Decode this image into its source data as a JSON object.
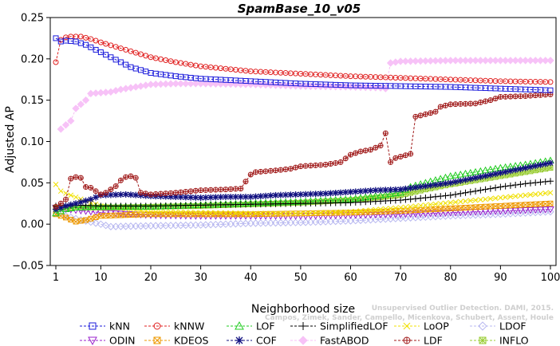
{
  "credit": {
    "line1": "Unsupervised Outlier Detection. DAMI, 2015.",
    "line2": "Campos, Zimek, Sander, Campello, Micenkova, Schubert, Assent, Houle"
  },
  "chart_data": {
    "type": "line",
    "title": "SpamBase_10_v05",
    "xlabel": "Neighborhood size",
    "ylabel": "Adjusted AP",
    "xlim": [
      1,
      100
    ],
    "ylim": [
      -0.05,
      0.25
    ],
    "xticks": [
      1,
      10,
      20,
      30,
      40,
      50,
      60,
      70,
      80,
      90,
      100
    ],
    "yticks": [
      -0.05,
      0.0,
      0.05,
      0.1,
      0.15,
      0.2,
      0.25
    ],
    "ytick_labels": [
      "−0.05",
      "0.00",
      "0.05",
      "0.10",
      "0.15",
      "0.20",
      "0.25"
    ],
    "grid": false,
    "legend": "bottom",
    "series": [
      {
        "name": "kNN",
        "color": "#1a1adb",
        "marker": "square",
        "dash": "dash",
        "points": [
          [
            1,
            0.225
          ],
          [
            2,
            0.221
          ],
          [
            3,
            0.222
          ],
          [
            5,
            0.221
          ],
          [
            7,
            0.217
          ],
          [
            10,
            0.208
          ],
          [
            13,
            0.199
          ],
          [
            16,
            0.19
          ],
          [
            20,
            0.183
          ],
          [
            25,
            0.179
          ],
          [
            30,
            0.176
          ],
          [
            40,
            0.173
          ],
          [
            50,
            0.17
          ],
          [
            60,
            0.168
          ],
          [
            70,
            0.167
          ],
          [
            80,
            0.166
          ],
          [
            90,
            0.164
          ],
          [
            100,
            0.162
          ]
        ]
      },
      {
        "name": "kNNW",
        "color": "#e02020",
        "marker": "circle",
        "dash": "dash",
        "points": [
          [
            1,
            0.196
          ],
          [
            2,
            0.223
          ],
          [
            3,
            0.226
          ],
          [
            4,
            0.227
          ],
          [
            6,
            0.227
          ],
          [
            8,
            0.224
          ],
          [
            10,
            0.22
          ],
          [
            15,
            0.211
          ],
          [
            20,
            0.202
          ],
          [
            25,
            0.196
          ],
          [
            30,
            0.191
          ],
          [
            40,
            0.185
          ],
          [
            50,
            0.182
          ],
          [
            60,
            0.179
          ],
          [
            70,
            0.177
          ],
          [
            80,
            0.175
          ],
          [
            90,
            0.173
          ],
          [
            100,
            0.172
          ]
        ]
      },
      {
        "name": "LOF",
        "color": "#22cc22",
        "marker": "triangle",
        "dash": "dash",
        "points": [
          [
            1,
            0.013
          ],
          [
            3,
            0.018
          ],
          [
            5,
            0.02
          ],
          [
            10,
            0.021
          ],
          [
            20,
            0.021
          ],
          [
            30,
            0.023
          ],
          [
            40,
            0.025
          ],
          [
            50,
            0.027
          ],
          [
            60,
            0.03
          ],
          [
            70,
            0.038
          ],
          [
            72,
            0.045
          ],
          [
            75,
            0.05
          ],
          [
            80,
            0.058
          ],
          [
            85,
            0.063
          ],
          [
            90,
            0.068
          ],
          [
            95,
            0.072
          ],
          [
            100,
            0.077
          ]
        ]
      },
      {
        "name": "SimplifiedLOF",
        "color": "#000000",
        "marker": "plus",
        "dash": "dash",
        "points": [
          [
            1,
            0.022
          ],
          [
            5,
            0.023
          ],
          [
            10,
            0.022
          ],
          [
            20,
            0.022
          ],
          [
            30,
            0.023
          ],
          [
            40,
            0.024
          ],
          [
            50,
            0.025
          ],
          [
            60,
            0.026
          ],
          [
            70,
            0.029
          ],
          [
            80,
            0.035
          ],
          [
            85,
            0.04
          ],
          [
            90,
            0.045
          ],
          [
            95,
            0.049
          ],
          [
            100,
            0.052
          ]
        ]
      },
      {
        "name": "LoOP",
        "color": "#f0e000",
        "marker": "x",
        "dash": "dash",
        "points": [
          [
            1,
            0.048
          ],
          [
            2,
            0.04
          ],
          [
            4,
            0.035
          ],
          [
            7,
            0.028
          ],
          [
            10,
            0.022
          ],
          [
            20,
            0.015
          ],
          [
            30,
            0.014
          ],
          [
            40,
            0.013
          ],
          [
            50,
            0.013
          ],
          [
            60,
            0.015
          ],
          [
            70,
            0.02
          ],
          [
            80,
            0.026
          ],
          [
            90,
            0.032
          ],
          [
            100,
            0.038
          ]
        ]
      },
      {
        "name": "LDOF",
        "color": "#b8b8f0",
        "marker": "diamond",
        "dash": "dash",
        "points": [
          [
            1,
            0.018
          ],
          [
            3,
            0.01
          ],
          [
            6,
            0.005
          ],
          [
            10,
            0.0
          ],
          [
            12,
            -0.003
          ],
          [
            20,
            -0.002
          ],
          [
            30,
            -0.001
          ],
          [
            40,
            0.001
          ],
          [
            50,
            0.002
          ],
          [
            60,
            0.004
          ],
          [
            70,
            0.007
          ],
          [
            80,
            0.01
          ],
          [
            90,
            0.012
          ],
          [
            100,
            0.015
          ]
        ]
      },
      {
        "name": "ODIN",
        "color": "#9922cc",
        "marker": "triangle-down",
        "dash": "dash",
        "points": [
          [
            1,
            0.02
          ],
          [
            5,
            0.017
          ],
          [
            10,
            0.014
          ],
          [
            20,
            0.011
          ],
          [
            30,
            0.01
          ],
          [
            40,
            0.01
          ],
          [
            50,
            0.01
          ],
          [
            60,
            0.011
          ],
          [
            70,
            0.012
          ],
          [
            80,
            0.014
          ],
          [
            90,
            0.016
          ],
          [
            100,
            0.018
          ]
        ]
      },
      {
        "name": "KDEOS",
        "color": "#ee9900",
        "marker": "square-x",
        "dash": "dash",
        "points": [
          [
            1,
            0.012
          ],
          [
            3,
            0.008
          ],
          [
            5,
            0.003
          ],
          [
            7,
            0.005
          ],
          [
            10,
            0.01
          ],
          [
            20,
            0.012
          ],
          [
            30,
            0.012
          ],
          [
            40,
            0.012
          ],
          [
            50,
            0.013
          ],
          [
            60,
            0.014
          ],
          [
            70,
            0.016
          ],
          [
            80,
            0.019
          ],
          [
            90,
            0.022
          ],
          [
            100,
            0.025
          ]
        ]
      },
      {
        "name": "COF",
        "color": "#101080",
        "marker": "asterisk",
        "dash": "dash",
        "points": [
          [
            1,
            0.018
          ],
          [
            3,
            0.022
          ],
          [
            5,
            0.025
          ],
          [
            8,
            0.03
          ],
          [
            10,
            0.035
          ],
          [
            15,
            0.036
          ],
          [
            20,
            0.034
          ],
          [
            25,
            0.033
          ],
          [
            30,
            0.032
          ],
          [
            35,
            0.033
          ],
          [
            40,
            0.033
          ],
          [
            45,
            0.035
          ],
          [
            50,
            0.036
          ],
          [
            55,
            0.037
          ],
          [
            60,
            0.039
          ],
          [
            65,
            0.041
          ],
          [
            70,
            0.042
          ],
          [
            75,
            0.046
          ],
          [
            80,
            0.05
          ],
          [
            85,
            0.056
          ],
          [
            90,
            0.062
          ],
          [
            95,
            0.068
          ],
          [
            100,
            0.074
          ]
        ]
      },
      {
        "name": "FastABOD",
        "color": "#f7c2f7",
        "marker": "diamond-filled",
        "dash": "dash",
        "points": [
          [
            2,
            0.115
          ],
          [
            3,
            0.12
          ],
          [
            4,
            0.125
          ],
          [
            5,
            0.14
          ],
          [
            6,
            0.145
          ],
          [
            7,
            0.15
          ],
          [
            8,
            0.158
          ],
          [
            10,
            0.159
          ],
          [
            12,
            0.16
          ],
          [
            14,
            0.163
          ],
          [
            16,
            0.165
          ],
          [
            18,
            0.167
          ],
          [
            20,
            0.169
          ],
          [
            25,
            0.17
          ],
          [
            30,
            0.17
          ],
          [
            40,
            0.169
          ],
          [
            50,
            0.167
          ],
          [
            60,
            0.166
          ],
          [
            66,
            0.165
          ],
          [
            67,
            0.164
          ],
          [
            68,
            0.195
          ],
          [
            70,
            0.197
          ],
          [
            80,
            0.198
          ],
          [
            90,
            0.198
          ],
          [
            100,
            0.198
          ]
        ]
      },
      {
        "name": "LDF",
        "color": "#a01a1a",
        "marker": "circle-plus",
        "dash": "dash",
        "points": [
          [
            1,
            0.021
          ],
          [
            2,
            0.025
          ],
          [
            3,
            0.03
          ],
          [
            4,
            0.055
          ],
          [
            5,
            0.057
          ],
          [
            6,
            0.056
          ],
          [
            7,
            0.045
          ],
          [
            8,
            0.044
          ],
          [
            9,
            0.04
          ],
          [
            10,
            0.036
          ],
          [
            11,
            0.038
          ],
          [
            12,
            0.042
          ],
          [
            13,
            0.046
          ],
          [
            14,
            0.053
          ],
          [
            15,
            0.057
          ],
          [
            16,
            0.058
          ],
          [
            17,
            0.056
          ],
          [
            18,
            0.038
          ],
          [
            20,
            0.036
          ],
          [
            25,
            0.038
          ],
          [
            30,
            0.041
          ],
          [
            35,
            0.042
          ],
          [
            38,
            0.043
          ],
          [
            40,
            0.06
          ],
          [
            41,
            0.063
          ],
          [
            45,
            0.065
          ],
          [
            48,
            0.067
          ],
          [
            50,
            0.07
          ],
          [
            55,
            0.072
          ],
          [
            58,
            0.075
          ],
          [
            60,
            0.084
          ],
          [
            62,
            0.088
          ],
          [
            64,
            0.09
          ],
          [
            66,
            0.095
          ],
          [
            67,
            0.11
          ],
          [
            68,
            0.075
          ],
          [
            69,
            0.08
          ],
          [
            72,
            0.085
          ],
          [
            73,
            0.13
          ],
          [
            75,
            0.133
          ],
          [
            77,
            0.136
          ],
          [
            78,
            0.142
          ],
          [
            80,
            0.145
          ],
          [
            85,
            0.146
          ],
          [
            88,
            0.15
          ],
          [
            90,
            0.154
          ],
          [
            95,
            0.155
          ],
          [
            100,
            0.157
          ]
        ]
      },
      {
        "name": "INFLO",
        "color": "#99cc33",
        "marker": "square-star",
        "dash": "dash",
        "points": [
          [
            1,
            0.02
          ],
          [
            5,
            0.02
          ],
          [
            10,
            0.02
          ],
          [
            20,
            0.021
          ],
          [
            30,
            0.022
          ],
          [
            40,
            0.024
          ],
          [
            50,
            0.026
          ],
          [
            60,
            0.029
          ],
          [
            70,
            0.035
          ],
          [
            75,
            0.042
          ],
          [
            80,
            0.048
          ],
          [
            85,
            0.053
          ],
          [
            90,
            0.058
          ],
          [
            95,
            0.063
          ],
          [
            100,
            0.068
          ]
        ]
      }
    ]
  }
}
